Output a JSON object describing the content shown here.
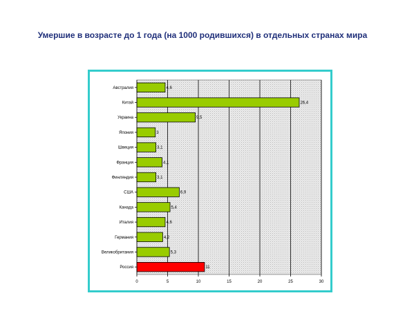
{
  "page": {
    "title": "Умершие в возрасте до 1 года (на 1000 родившихся) в отдельных странах мира"
  },
  "colors": {
    "bar": "#99cc00",
    "highlight_bar": "#ff0000",
    "frame": "#33cccc",
    "title": "#1f2f7a"
  },
  "chart_data": {
    "type": "bar",
    "orientation": "horizontal",
    "title": "",
    "xlabel": "",
    "ylabel": "",
    "categories": [
      "Австралия",
      "Китай",
      "Украина",
      "Япония",
      "Швеция",
      "Франция",
      "Финляндия",
      "США",
      "Канада",
      "Италия",
      "Германия",
      "Великобритания",
      "Россия"
    ],
    "values": [
      4.6,
      26.4,
      9.5,
      3,
      3.1,
      4.1,
      3.1,
      6.9,
      5.4,
      4.6,
      4.2,
      5.3,
      11
    ],
    "value_labels": [
      "4,6",
      "26,4",
      "9,5",
      "3",
      "3,1",
      "4,1",
      "3,1",
      "6,9",
      "5,4",
      "4,6",
      "4,2",
      "5,3",
      "11"
    ],
    "highlight_category": "Россия",
    "xlim": [
      0,
      30
    ],
    "xticks": [
      0,
      5,
      10,
      15,
      20,
      25,
      30
    ],
    "grid": "vertical",
    "legend": "none"
  }
}
